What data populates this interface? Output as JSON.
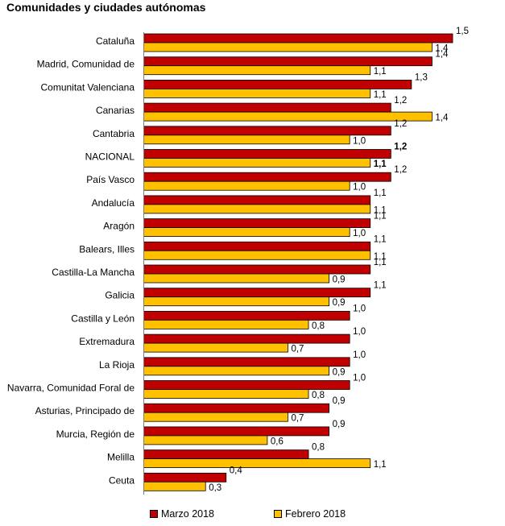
{
  "title": "Comunidades y ciudades autónomas",
  "colors": {
    "series0": "#c00000",
    "series1": "#ffc000",
    "outline": "#000000"
  },
  "chart_data": {
    "type": "bar",
    "orientation": "horizontal",
    "title": "Comunidades y ciudades autónomas",
    "categories": [
      "Cataluña",
      "Madrid, Comunidad de",
      "Comunitat Valenciana",
      "Canarias",
      "Cantabria",
      "NACIONAL",
      "País Vasco",
      "Andalucía",
      "Aragón",
      "Balears, Illes",
      "Castilla-La Mancha",
      "Galicia",
      "Castilla y León",
      "Extremadura",
      "La Rioja",
      "Navarra, Comunidad Foral de",
      "Asturias, Principado de",
      "Murcia, Región de",
      "Melilla",
      "Ceuta"
    ],
    "highlight_category": "NACIONAL",
    "series": [
      {
        "name": "Marzo 2018",
        "values": [
          1.5,
          1.4,
          1.3,
          1.2,
          1.2,
          1.2,
          1.2,
          1.1,
          1.1,
          1.1,
          1.1,
          1.1,
          1.0,
          1.0,
          1.0,
          1.0,
          0.9,
          0.9,
          0.8,
          0.4
        ],
        "labels": [
          "1,5",
          "1,4",
          "1,3",
          "1,2",
          "1,2",
          "1,2",
          "1,2",
          "1,1",
          "1,1",
          "1,1",
          "1,1",
          "1,1",
          "1,0",
          "1,0",
          "1,0",
          "1,0",
          "0,9",
          "0,9",
          "0,8",
          "0,4"
        ]
      },
      {
        "name": "Febrero 2018",
        "values": [
          1.4,
          1.1,
          1.1,
          1.4,
          1.0,
          1.1,
          1.0,
          1.1,
          1.0,
          1.1,
          0.9,
          0.9,
          0.8,
          0.7,
          0.9,
          0.8,
          0.7,
          0.6,
          1.1,
          0.3
        ],
        "labels": [
          "1,4",
          "1,1",
          "1,1",
          "1,4",
          "1,0",
          "1,1",
          "1,0",
          "1,1",
          "1,0",
          "1,1",
          "0,9",
          "0,9",
          "0,8",
          "0,7",
          "0,9",
          "0,8",
          "0,7",
          "0,6",
          "1,1",
          "0,3"
        ]
      }
    ],
    "xlim": [
      0,
      1.5
    ],
    "grid": false,
    "legend_position": "bottom"
  }
}
